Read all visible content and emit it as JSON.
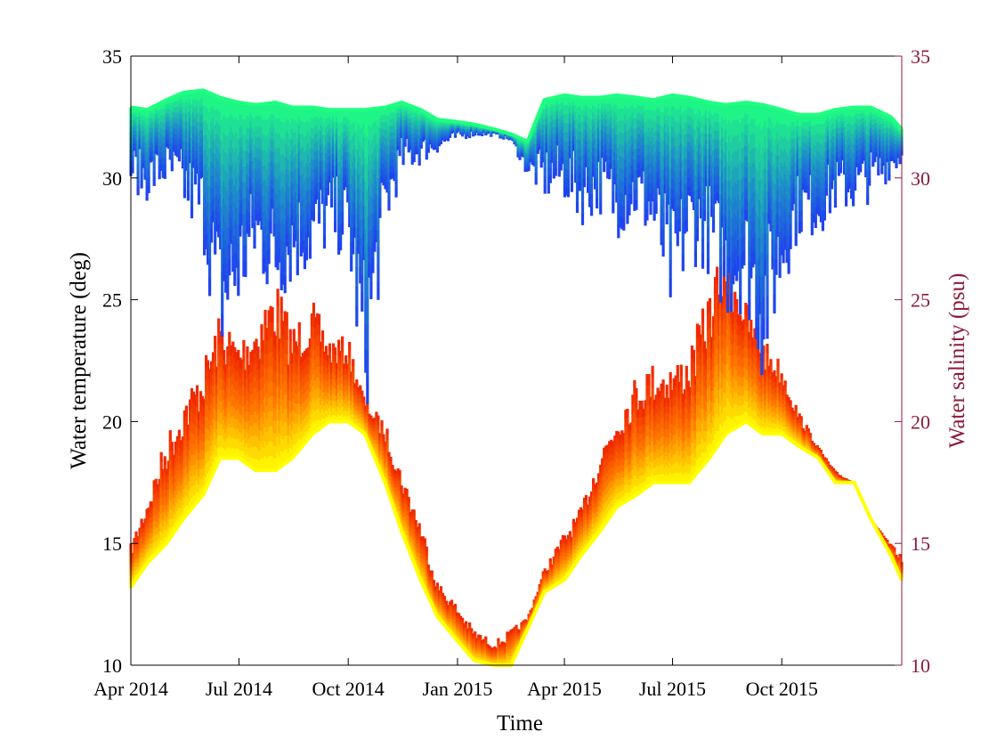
{
  "chart_data": {
    "type": "scatter",
    "title": "",
    "xlabel": "Time",
    "ylabel_left": "Water temperature (deg)",
    "ylabel_right": "Water salinity (psu)",
    "x_range": [
      "2014-04-01",
      "2016-01-10"
    ],
    "x_ticks": [
      {
        "date": "2014-04-01",
        "label": "Apr 2014"
      },
      {
        "date": "2014-07-01",
        "label": "Jul 2014"
      },
      {
        "date": "2014-10-01",
        "label": "Oct 2014"
      },
      {
        "date": "2015-01-01",
        "label": "Jan 2015"
      },
      {
        "date": "2015-04-01",
        "label": "Apr 2015"
      },
      {
        "date": "2015-07-01",
        "label": "Jul 2015"
      },
      {
        "date": "2015-10-01",
        "label": "Oct 2015"
      }
    ],
    "ylim_left": [
      10,
      35
    ],
    "ylim_right": [
      10,
      35
    ],
    "y_ticks_left": [
      "10",
      "15",
      "20",
      "25",
      "30",
      "35"
    ],
    "y_ticks_right": [
      "10",
      "15",
      "20",
      "25",
      "30",
      "35"
    ],
    "grid": false,
    "colors": {
      "left_axis": "#000000",
      "right_axis": "#8b1a3a",
      "temperature_scale": [
        "#ee2200",
        "#ff7700",
        "#ffff00"
      ],
      "salinity_scale": [
        "#1f3cf2",
        "#1e90c8",
        "#1fff80"
      ]
    },
    "series": [
      {
        "kind": "temperature",
        "x": [
          "2014-04-01",
          "2014-04-15",
          "2014-05-01",
          "2014-05-15",
          "2014-06-01",
          "2014-06-15",
          "2014-07-01",
          "2014-07-15",
          "2014-08-01",
          "2014-08-15",
          "2014-09-01",
          "2014-09-15",
          "2014-10-01",
          "2014-10-15",
          "2014-11-01",
          "2014-11-15",
          "2014-12-01",
          "2014-12-15",
          "2015-01-01",
          "2015-01-15",
          "2015-02-01",
          "2015-02-15",
          "2015-03-01",
          "2015-03-15",
          "2015-04-01",
          "2015-04-15",
          "2015-05-01",
          "2015-05-15",
          "2015-06-01",
          "2015-06-15",
          "2015-07-01",
          "2015-07-15",
          "2015-08-01",
          "2015-08-15",
          "2015-09-01",
          "2015-09-15",
          "2015-10-01",
          "2015-10-15",
          "2015-11-01",
          "2015-11-15",
          "2015-12-01",
          "2015-12-15",
          "2016-01-01",
          "2016-01-10"
        ],
        "upper": [
          15.0,
          17.0,
          19.5,
          21.0,
          22.5,
          24.5,
          23.5,
          24.5,
          26.0,
          24.0,
          25.0,
          23.5,
          23.5,
          21.0,
          20.0,
          18.0,
          16.0,
          13.5,
          12.5,
          11.5,
          11.0,
          11.5,
          12.0,
          14.0,
          15.5,
          16.5,
          19.0,
          20.5,
          22.0,
          22.5,
          22.5,
          23.0,
          25.5,
          28.0,
          25.0,
          23.5,
          22.5,
          20.5,
          19.0,
          18.0,
          17.5,
          16.0,
          15.0,
          14.5
        ],
        "lower": [
          13.2,
          14.2,
          15.0,
          16.0,
          17.0,
          18.5,
          18.5,
          18.0,
          18.0,
          18.5,
          19.5,
          20.0,
          20.0,
          19.5,
          17.5,
          15.5,
          13.5,
          12.0,
          11.0,
          10.2,
          10.0,
          10.0,
          11.5,
          13.0,
          13.5,
          14.5,
          15.5,
          16.5,
          17.0,
          17.5,
          17.5,
          17.5,
          18.5,
          19.5,
          20.0,
          19.5,
          19.5,
          19.0,
          18.5,
          17.5,
          17.5,
          16.0,
          14.5,
          13.5
        ]
      },
      {
        "kind": "salinity",
        "x": [
          "2014-04-01",
          "2014-04-15",
          "2014-05-01",
          "2014-05-15",
          "2014-06-01",
          "2014-06-15",
          "2014-07-01",
          "2014-07-15",
          "2014-08-01",
          "2014-08-15",
          "2014-09-01",
          "2014-09-15",
          "2014-10-01",
          "2014-10-15",
          "2014-11-01",
          "2014-11-15",
          "2014-12-01",
          "2014-12-15",
          "2015-01-01",
          "2015-01-15",
          "2015-02-01",
          "2015-02-15",
          "2015-03-01",
          "2015-03-15",
          "2015-04-01",
          "2015-04-15",
          "2015-05-01",
          "2015-05-15",
          "2015-06-01",
          "2015-06-15",
          "2015-07-01",
          "2015-07-15",
          "2015-08-01",
          "2015-08-15",
          "2015-09-01",
          "2015-09-15",
          "2015-10-01",
          "2015-10-15",
          "2015-11-01",
          "2015-11-15",
          "2015-12-01",
          "2015-12-15",
          "2016-01-01",
          "2016-01-10"
        ],
        "upper": [
          32.9,
          32.8,
          33.2,
          33.5,
          33.6,
          33.3,
          33.1,
          33.0,
          33.1,
          32.9,
          32.9,
          32.8,
          32.8,
          32.8,
          32.9,
          33.1,
          32.8,
          32.4,
          32.3,
          32.2,
          32.0,
          31.8,
          31.5,
          33.2,
          33.4,
          33.3,
          33.3,
          33.4,
          33.3,
          33.2,
          33.4,
          33.3,
          33.1,
          33.0,
          33.1,
          33.0,
          32.8,
          32.6,
          32.6,
          32.8,
          32.9,
          32.9,
          32.5,
          32.0
        ],
        "lower": [
          29.5,
          29.0,
          29.5,
          28.5,
          27.0,
          22.0,
          24.0,
          26.0,
          24.5,
          25.5,
          26.0,
          27.0,
          26.5,
          19.5,
          27.5,
          30.0,
          30.5,
          31.0,
          31.5,
          31.7,
          31.7,
          31.5,
          30.0,
          29.0,
          29.0,
          28.0,
          28.5,
          27.5,
          28.0,
          27.0,
          23.5,
          26.5,
          26.0,
          24.0,
          24.5,
          21.5,
          25.0,
          27.5,
          27.5,
          28.5,
          28.5,
          29.0,
          30.0,
          30.5
        ]
      }
    ]
  }
}
